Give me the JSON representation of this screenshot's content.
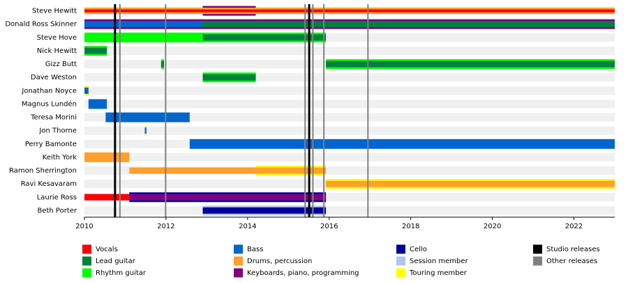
{
  "chart_data": {
    "type": "timeline",
    "members": [
      "Steve Hewitt",
      "Donald Ross Skinner",
      "Steve Hove",
      "Nick Hewitt",
      "Gizz Butt",
      "Dave Weston",
      "Jonathan Noyce",
      "Magnus Lundén",
      "Teresa Morini",
      "Jon Thorne",
      "Perry Bamonte",
      "Keith York",
      "Ramon Sherrington",
      "Ravi Kesavaram",
      "Laurie Ross",
      "Beth Porter"
    ],
    "series": [
      {
        "name": "Vocals",
        "color": "#ff0000",
        "values": [
          [
            [
              2010,
              2023
            ]
          ],
          [],
          [],
          [],
          [],
          [],
          [],
          [],
          [],
          [],
          [],
          [],
          [],
          [],
          [
            [
              2010,
              2011.1
            ]
          ],
          []
        ]
      },
      {
        "name": "Lead guitar",
        "color": "#008040",
        "values": [
          [],
          [
            [
              2012.9,
              2023
            ]
          ],
          [
            [
              2012.9,
              2015.92
            ]
          ],
          [
            [
              2010,
              2010.55
            ]
          ],
          [
            [
              2011.88,
              2011.95
            ],
            [
              2015.92,
              2023
            ]
          ],
          [
            [
              2012.9,
              2014.2
            ]
          ],
          [],
          [],
          [],
          [],
          [],
          [],
          [],
          [],
          [],
          []
        ]
      },
      {
        "name": "Rhythm guitar",
        "color": "#00ff00",
        "values": [
          [],
          [],
          [
            [
              2010,
              2015.92
            ]
          ],
          [
            [
              2010,
              2010.55
            ]
          ],
          [
            [
              2011.88,
              2011.95
            ],
            [
              2015.92,
              2023
            ]
          ],
          [
            [
              2012.9,
              2014.2
            ]
          ],
          [],
          [],
          [],
          [],
          [],
          [],
          [],
          [],
          [],
          []
        ]
      },
      {
        "name": "Bass",
        "color": "#0066cc",
        "values": [
          [],
          [
            [
              2010,
              2012.9
            ]
          ],
          [],
          [],
          [],
          [],
          [
            [
              2010,
              2010.1
            ]
          ],
          [
            [
              2010.1,
              2010.55
            ]
          ],
          [
            [
              2010.52,
              2012.58
            ]
          ],
          [
            [
              2011.48,
              2011.52
            ]
          ],
          [
            [
              2012.58,
              2023
            ]
          ],
          [],
          [],
          [],
          [],
          []
        ]
      },
      {
        "name": "Drums, percussion",
        "color": "#ffa02c",
        "values": [
          [
            [
              2010,
              2023
            ]
          ],
          [],
          [],
          [],
          [],
          [],
          [],
          [],
          [],
          [],
          [],
          [
            [
              2010,
              2011.1
            ]
          ],
          [
            [
              2011.1,
              2015.92
            ]
          ],
          [
            [
              2015.92,
              2023
            ]
          ],
          [],
          []
        ]
      },
      {
        "name": "Keyboards, piano, programming",
        "color": "#800080",
        "values": [
          [
            [
              2012.9,
              2014.2
            ]
          ],
          [
            [
              2010,
              2023
            ]
          ],
          [],
          [],
          [],
          [],
          [],
          [],
          [],
          [],
          [],
          [],
          [],
          [],
          [
            [
              2010,
              2015.92
            ]
          ],
          []
        ]
      },
      {
        "name": "Cello",
        "color": "#000099",
        "values": [
          [],
          [],
          [],
          [],
          [],
          [],
          [],
          [],
          [],
          [],
          [],
          [],
          [],
          [],
          [
            [
              2011.1,
              2015.92
            ]
          ],
          [
            [
              2012.9,
              2015.92
            ]
          ]
        ]
      },
      {
        "name": "Session member",
        "color": "#b0c4f0",
        "values": [
          [],
          [],
          [],
          [],
          [],
          [],
          [],
          [],
          [],
          [],
          [],
          [],
          [],
          [],
          [],
          [
            [
              2012.9,
              2015.92
            ]
          ]
        ]
      },
      {
        "name": "Touring member",
        "color": "#ffff00",
        "values": [
          [],
          [],
          [],
          [],
          [],
          [],
          [
            [
              2010,
              2010.1
            ]
          ],
          [],
          [],
          [
            [
              2011.48,
              2011.52
            ]
          ],
          [],
          [],
          [
            [
              2014.2,
              2015.92
            ]
          ],
          [
            [
              2015.92,
              2023
            ]
          ],
          [],
          []
        ]
      }
    ],
    "releases": [
      {
        "name": "Studio releases",
        "color": "#000000",
        "values": [
          2010.75,
          2015.51
        ]
      },
      {
        "name": "Other releases",
        "color": "#808080",
        "values": [
          2010.87,
          2011.99,
          2015.41,
          2015.6,
          2015.87,
          2016.95
        ]
      }
    ],
    "xlim": [
      2010,
      2023
    ],
    "xticks": [
      2010,
      2012,
      2014,
      2016,
      2018,
      2020,
      2022
    ]
  }
}
